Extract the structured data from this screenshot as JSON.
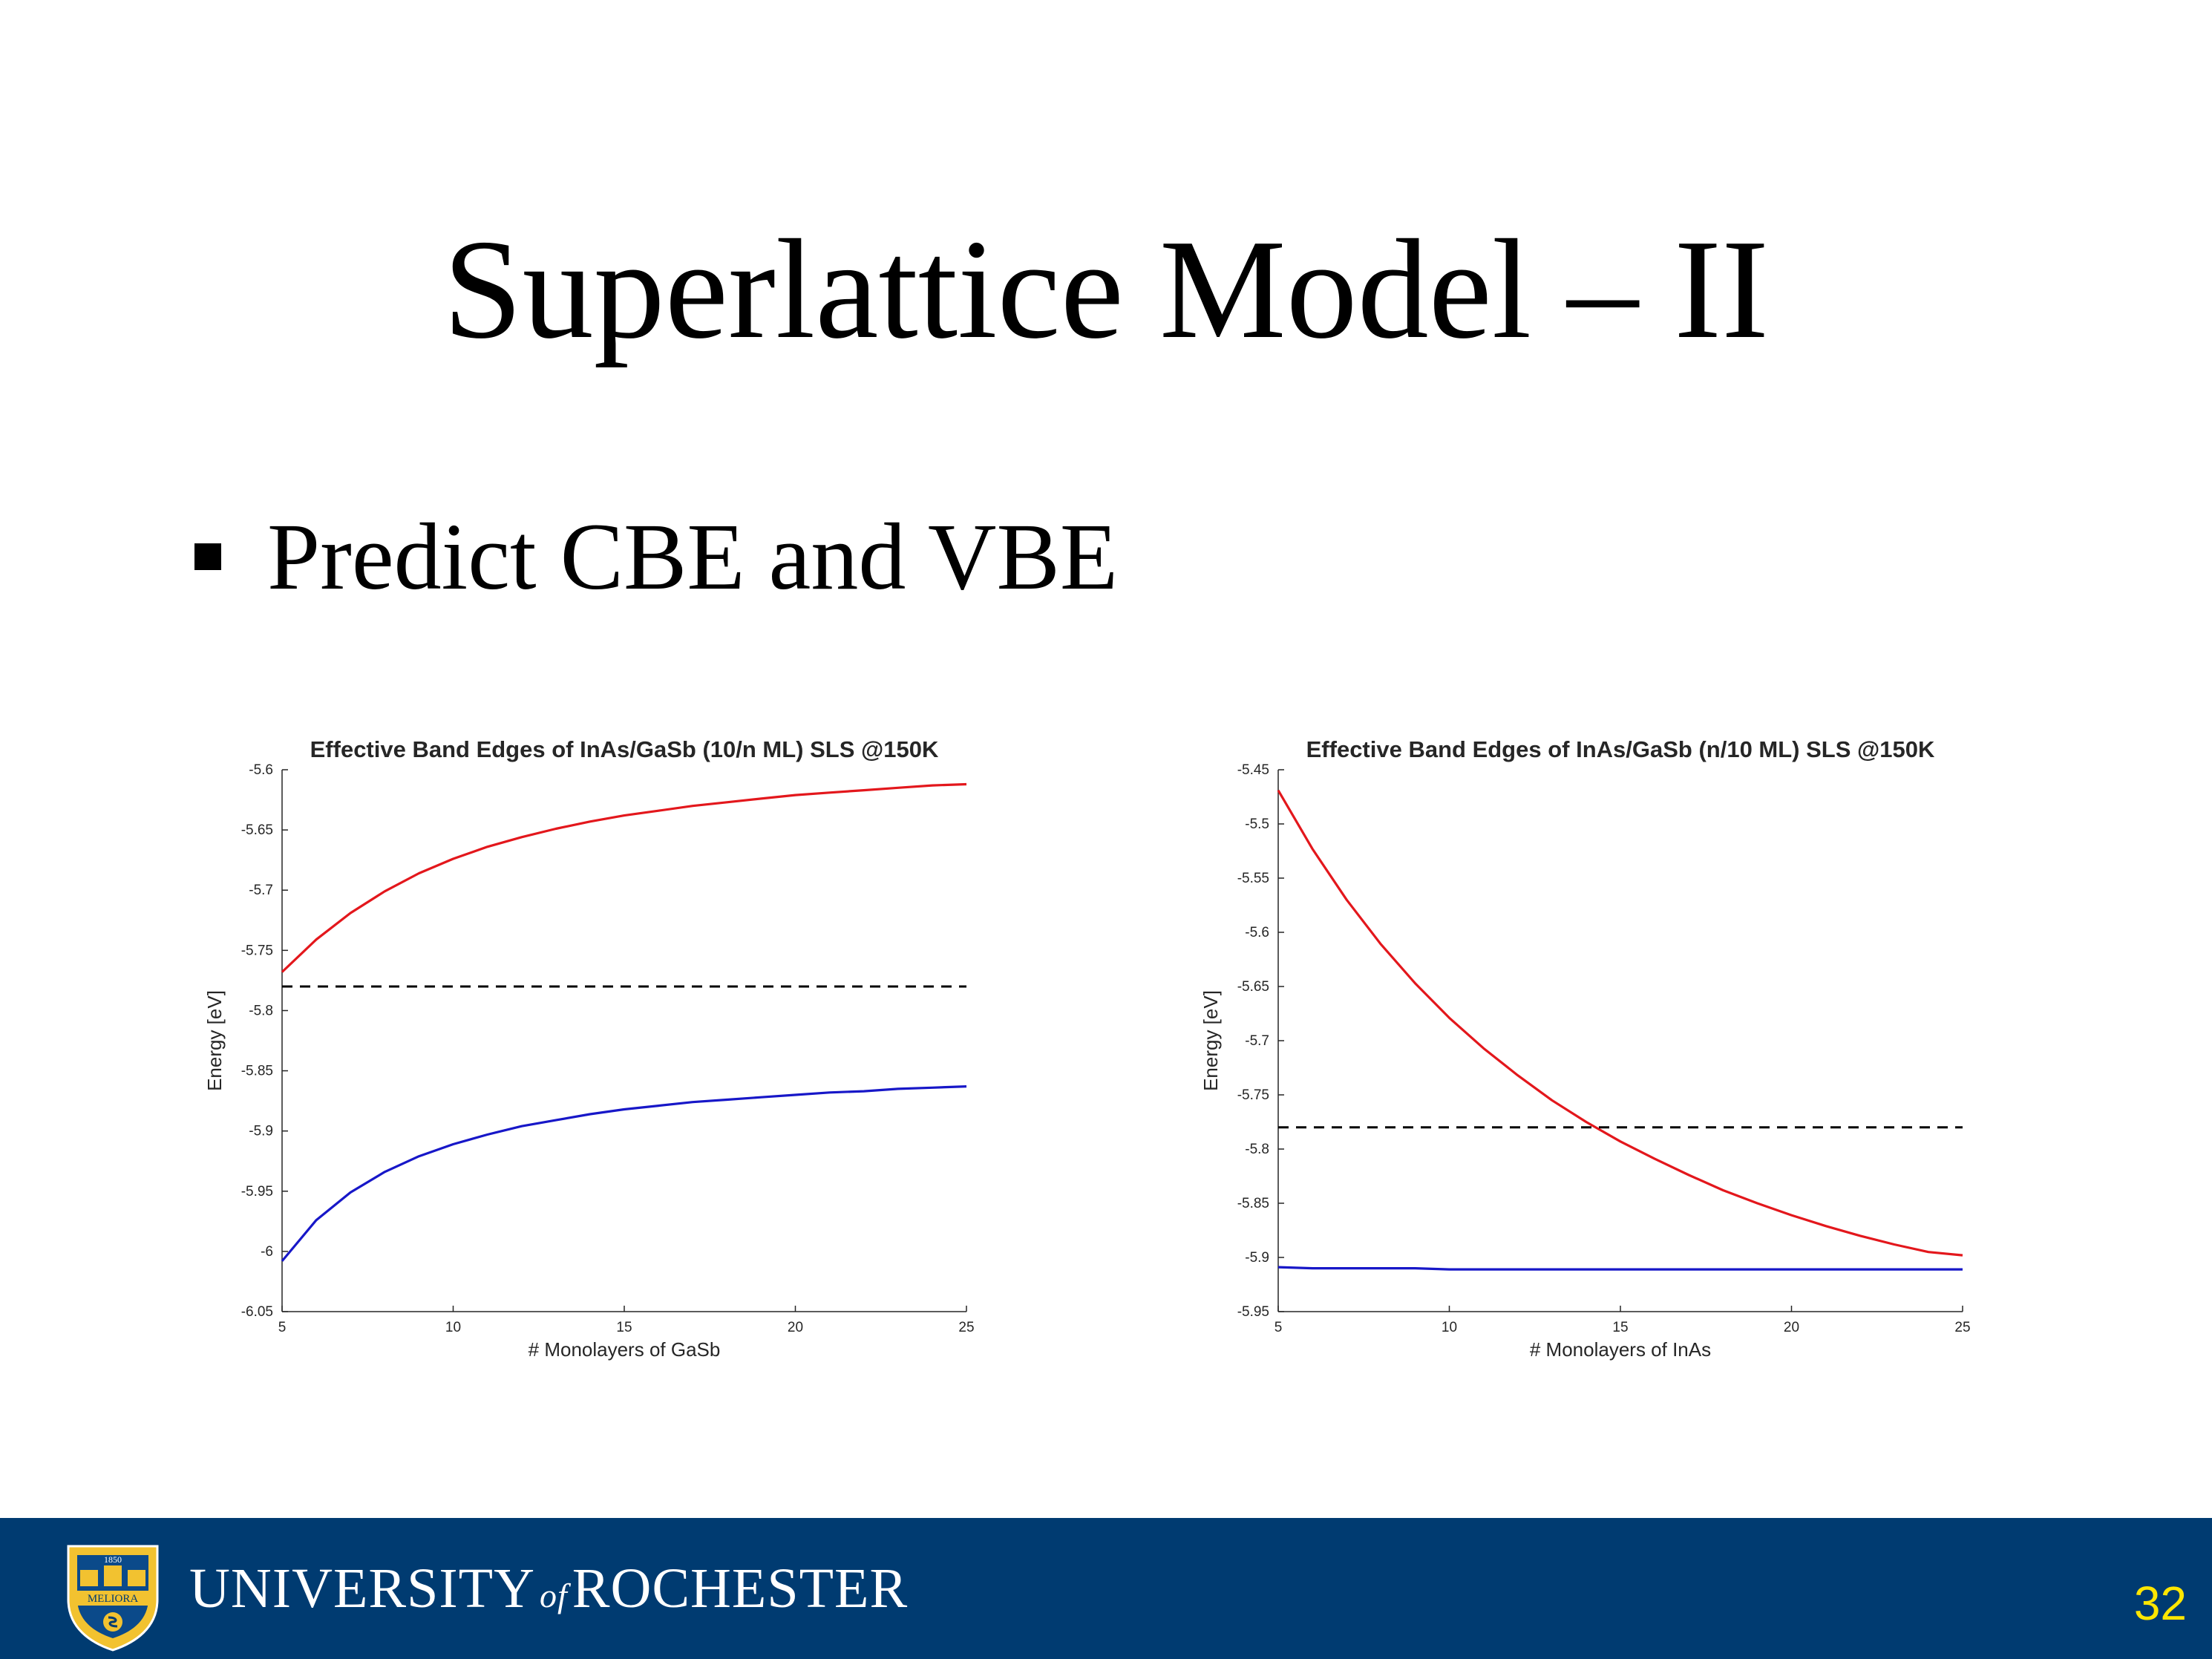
{
  "slide": {
    "title": "Superlattice Model – II",
    "bullet": "Predict CBE and VBE",
    "page_number": "32"
  },
  "footer": {
    "university_part1": "UNIVERSITY",
    "university_of": "of",
    "university_part2": "ROCHESTER",
    "seal_text": "MELIORA",
    "seal_year": "1850",
    "background_color": "#003b71",
    "page_number_color": "#ffe600",
    "seal_icon": "university-seal-icon"
  },
  "chart_data": [
    {
      "type": "line",
      "title": "Effective Band Edges of InAs/GaSb (10/n ML) SLS @150K",
      "xlabel": "# Monolayers of GaSb",
      "ylabel": "Energy [eV]",
      "xlim": [
        5,
        25
      ],
      "ylim": [
        -6.05,
        -5.6
      ],
      "xticks": [
        "5",
        "10",
        "15",
        "20",
        "25"
      ],
      "yticks": [
        "-5.6",
        "-5.65",
        "-5.7",
        "-5.75",
        "-5.8",
        "-5.85",
        "-5.9",
        "-5.95",
        "-6",
        "-6.05"
      ],
      "grid": false,
      "x": [
        5,
        6,
        7,
        8,
        9,
        10,
        11,
        12,
        13,
        14,
        15,
        16,
        17,
        18,
        19,
        20,
        21,
        22,
        23,
        24,
        25
      ],
      "series": [
        {
          "color": "#e3171c",
          "style": "solid",
          "values": [
            -5.768,
            -5.741,
            -5.719,
            -5.701,
            -5.686,
            -5.674,
            -5.664,
            -5.656,
            -5.649,
            -5.643,
            -5.638,
            -5.634,
            -5.63,
            -5.627,
            -5.624,
            -5.621,
            -5.619,
            -5.617,
            -5.615,
            -5.613,
            -5.612
          ]
        },
        {
          "color": "#1717c8",
          "style": "solid",
          "values": [
            -6.008,
            -5.974,
            -5.951,
            -5.934,
            -5.921,
            -5.911,
            -5.903,
            -5.896,
            -5.891,
            -5.886,
            -5.882,
            -5.879,
            -5.876,
            -5.874,
            -5.872,
            -5.87,
            -5.868,
            -5.867,
            -5.865,
            -5.864,
            -5.863
          ]
        },
        {
          "color": "#000000",
          "style": "dashed",
          "values": [
            -5.78,
            -5.78,
            -5.78,
            -5.78,
            -5.78,
            -5.78,
            -5.78,
            -5.78,
            -5.78,
            -5.78,
            -5.78,
            -5.78,
            -5.78,
            -5.78,
            -5.78,
            -5.78,
            -5.78,
            -5.78,
            -5.78,
            -5.78,
            -5.78
          ]
        }
      ]
    },
    {
      "type": "line",
      "title": "Effective Band Edges of InAs/GaSb (n/10 ML) SLS @150K",
      "xlabel": "# Monolayers of InAs",
      "ylabel": "Energy [eV]",
      "xlim": [
        5,
        25
      ],
      "ylim": [
        -5.95,
        -5.45
      ],
      "xticks": [
        "5",
        "10",
        "15",
        "20",
        "25"
      ],
      "yticks": [
        "-5.45",
        "-5.5",
        "-5.55",
        "-5.6",
        "-5.65",
        "-5.7",
        "-5.75",
        "-5.8",
        "-5.85",
        "-5.9",
        "-5.95"
      ],
      "grid": false,
      "x": [
        5,
        6,
        7,
        8,
        9,
        10,
        11,
        12,
        13,
        14,
        15,
        16,
        17,
        18,
        19,
        20,
        21,
        22,
        23,
        24,
        25
      ],
      "series": [
        {
          "color": "#e3171c",
          "style": "solid",
          "values": [
            -5.469,
            -5.523,
            -5.57,
            -5.611,
            -5.647,
            -5.679,
            -5.707,
            -5.732,
            -5.755,
            -5.775,
            -5.793,
            -5.809,
            -5.824,
            -5.838,
            -5.85,
            -5.861,
            -5.871,
            -5.88,
            -5.888,
            -5.895,
            -5.898
          ]
        },
        {
          "color": "#1717c8",
          "style": "solid",
          "values": [
            -5.909,
            -5.91,
            -5.91,
            -5.91,
            -5.91,
            -5.911,
            -5.911,
            -5.911,
            -5.911,
            -5.911,
            -5.911,
            -5.911,
            -5.911,
            -5.911,
            -5.911,
            -5.911,
            -5.911,
            -5.911,
            -5.911,
            -5.911,
            -5.911
          ]
        },
        {
          "color": "#000000",
          "style": "dashed",
          "values": [
            -5.78,
            -5.78,
            -5.78,
            -5.78,
            -5.78,
            -5.78,
            -5.78,
            -5.78,
            -5.78,
            -5.78,
            -5.78,
            -5.78,
            -5.78,
            -5.78,
            -5.78,
            -5.78,
            -5.78,
            -5.78,
            -5.78,
            -5.78,
            -5.78
          ]
        }
      ]
    }
  ]
}
